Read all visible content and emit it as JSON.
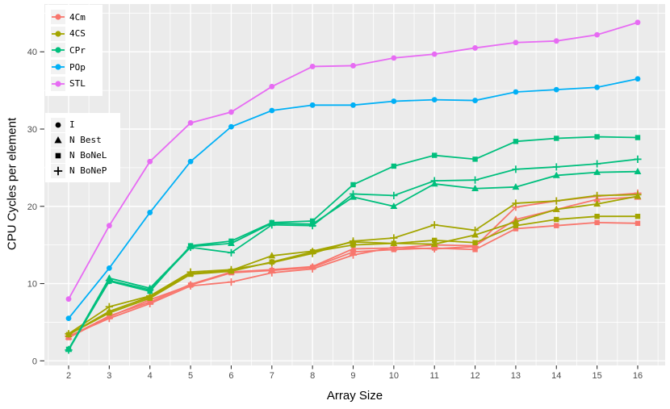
{
  "figure": {
    "x_axis_title": "Array Size",
    "y_axis_title": "CPU Cycles per element"
  },
  "style": {
    "plot_bg": "#EBEBEB",
    "grid": "#FFFFFF",
    "tick_text": "#4D4D4D",
    "tick_mark": "#333333",
    "legend_bg": "#FFFFFF",
    "legend_key_bg": "#F2F2F2",
    "shape_glyph": "#000000"
  },
  "color_legend": {
    "items": [
      {
        "label": "4Cm",
        "color": "#F8766D"
      },
      {
        "label": "4CS",
        "color": "#A3A500"
      },
      {
        "label": "CPr",
        "color": "#00BF7D"
      },
      {
        "label": "POp",
        "color": "#00B0F6"
      },
      {
        "label": "STL",
        "color": "#E76BF3"
      }
    ]
  },
  "shape_legend": {
    "items": [
      {
        "label": "I",
        "shape": "circle"
      },
      {
        "label": "N Best",
        "shape": "triangle"
      },
      {
        "label": "N BoNeL",
        "shape": "square"
      },
      {
        "label": "N BoNeP",
        "shape": "plus"
      }
    ]
  },
  "chart_data": {
    "type": "line",
    "title": "",
    "xlabel": "Array Size",
    "ylabel": "CPU Cycles per element",
    "x": [
      2,
      3,
      4,
      5,
      6,
      7,
      8,
      9,
      10,
      11,
      12,
      13,
      14,
      15,
      16
    ],
    "x_ticks": [
      2,
      3,
      4,
      5,
      6,
      7,
      8,
      9,
      10,
      11,
      12,
      13,
      14,
      15,
      16
    ],
    "y_ticks": [
      0,
      10,
      20,
      30,
      40
    ],
    "x_minor": [
      1.5,
      2.5,
      3.5,
      4.5,
      5.5,
      6.5,
      7.5,
      8.5,
      9.5,
      10.5,
      11.5,
      12.5,
      13.5,
      14.5,
      15.5,
      16.5
    ],
    "y_minor": [
      5,
      15,
      25,
      35,
      45
    ],
    "xlim": [
      1.4,
      16.67
    ],
    "ylim": [
      -0.6,
      46.3
    ],
    "grid": true,
    "legend_position": "inside-top-left",
    "series": [
      {
        "name": "4Cm N Best",
        "color_key": "4Cm",
        "shape": "triangle",
        "color": "#F8766D",
        "values": [
          3.1,
          5.8,
          7.6,
          9.9,
          11.5,
          11.8,
          12.2,
          14.5,
          14.6,
          15.0,
          14.9,
          18.3,
          19.6,
          20.9,
          21.2
        ]
      },
      {
        "name": "4Cm N BoNeL",
        "color_key": "4Cm",
        "shape": "square",
        "color": "#F8766D",
        "values": [
          3.0,
          5.7,
          7.9,
          9.8,
          11.4,
          11.7,
          12.1,
          14.1,
          14.4,
          14.6,
          14.4,
          17.1,
          17.5,
          17.9,
          17.8
        ]
      },
      {
        "name": "4Cm N BoNeP",
        "color_key": "4Cm",
        "shape": "plus",
        "color": "#F8766D",
        "values": [
          3.2,
          5.5,
          7.4,
          9.7,
          10.2,
          11.4,
          11.9,
          13.7,
          14.7,
          14.5,
          14.8,
          19.9,
          20.7,
          21.3,
          21.7
        ]
      },
      {
        "name": "4CS N Best",
        "color_key": "4CS",
        "shape": "triangle",
        "color": "#A3A500",
        "values": [
          3.4,
          6.4,
          8.3,
          11.3,
          11.7,
          13.6,
          14.2,
          15.4,
          15.2,
          15.1,
          16.3,
          18.0,
          19.6,
          20.3,
          21.3
        ]
      },
      {
        "name": "4CS N BoNeL",
        "color_key": "4CS",
        "shape": "square",
        "color": "#A3A500",
        "values": [
          3.4,
          6.2,
          8.1,
          11.2,
          11.6,
          12.8,
          14.1,
          15.0,
          15.2,
          15.6,
          15.3,
          17.5,
          18.3,
          18.7,
          18.7
        ]
      },
      {
        "name": "4CS N BoNeP",
        "color_key": "4CS",
        "shape": "plus",
        "color": "#A3A500",
        "values": [
          3.5,
          7.0,
          8.4,
          11.5,
          11.8,
          12.7,
          13.9,
          15.5,
          15.9,
          17.6,
          16.9,
          20.4,
          20.7,
          21.4,
          21.5
        ]
      },
      {
        "name": "CPr N Best",
        "color_key": "CPr",
        "shape": "triangle",
        "color": "#00BF7D",
        "values": [
          1.5,
          10.7,
          9.4,
          14.8,
          15.2,
          17.8,
          17.7,
          21.2,
          20.0,
          22.9,
          22.3,
          22.5,
          24.0,
          24.4,
          24.5
        ]
      },
      {
        "name": "CPr N BoNeL",
        "color_key": "CPr",
        "shape": "square",
        "color": "#00BF7D",
        "values": [
          1.5,
          10.3,
          9.0,
          14.9,
          15.5,
          17.9,
          18.1,
          22.8,
          25.2,
          26.6,
          26.1,
          28.4,
          28.8,
          29.0,
          28.9
        ]
      },
      {
        "name": "CPr N BoNeP",
        "color_key": "CPr",
        "shape": "plus",
        "color": "#00BF7D",
        "values": [
          1.4,
          10.4,
          9.2,
          14.7,
          14.0,
          17.6,
          17.5,
          21.6,
          21.4,
          23.3,
          23.4,
          24.8,
          25.1,
          25.5,
          26.1
        ]
      },
      {
        "name": "POp I",
        "color_key": "POp",
        "shape": "circle",
        "color": "#00B0F6",
        "values": [
          5.5,
          12.0,
          19.2,
          25.8,
          30.3,
          32.4,
          33.1,
          33.1,
          33.6,
          33.8,
          33.7,
          34.8,
          35.1,
          35.4,
          36.5
        ]
      },
      {
        "name": "STL I",
        "color_key": "STL",
        "shape": "circle",
        "color": "#E76BF3",
        "values": [
          8.0,
          17.5,
          25.8,
          30.8,
          32.2,
          35.5,
          38.1,
          38.2,
          39.2,
          39.7,
          40.5,
          41.2,
          41.4,
          42.2,
          43.8
        ]
      }
    ]
  }
}
